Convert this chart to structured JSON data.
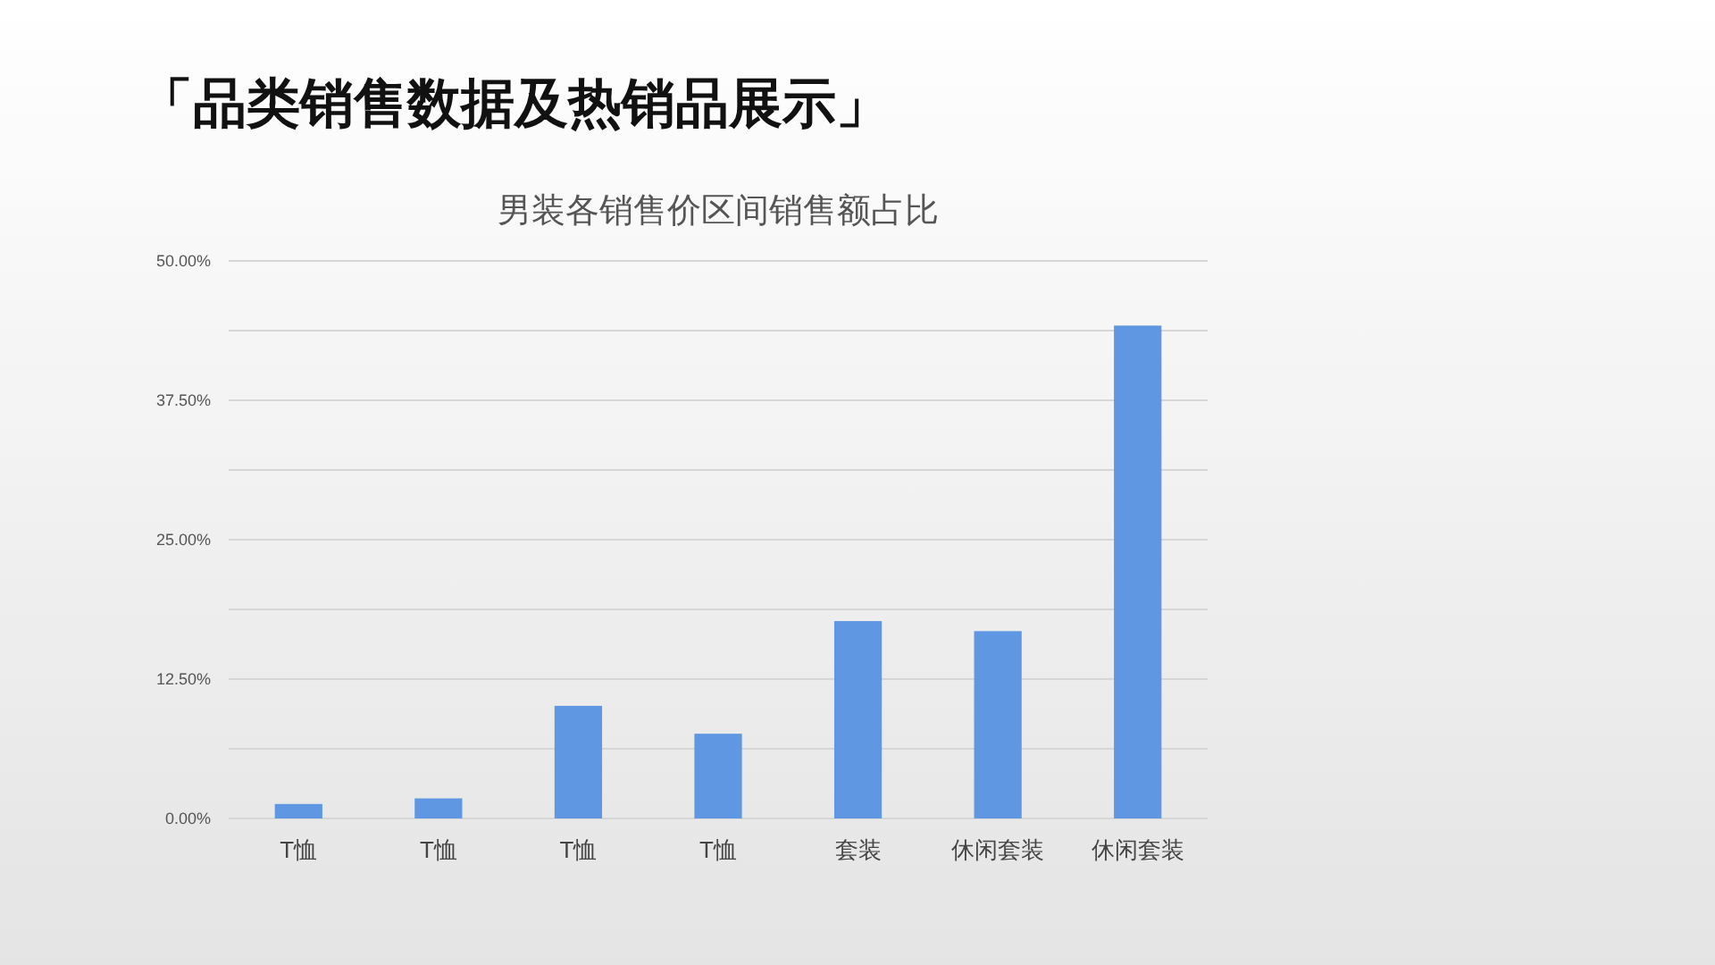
{
  "chart_data": {
    "type": "bar",
    "title": "「品类销售数据及热销品展示」",
    "subtitle": "男装各销售价区间销售额占比",
    "categories": [
      "T恤",
      "T恤",
      "T恤",
      "T恤",
      "套装",
      "休闲套装",
      "休闲套装"
    ],
    "values": [
      1.3,
      1.8,
      10.1,
      7.6,
      17.7,
      16.8,
      44.2
    ],
    "color": "#5f97e2",
    "ylim": [
      0,
      50
    ],
    "yticks": [
      {
        "value": 0,
        "label": "0.00%"
      },
      {
        "value": 6.25,
        "label": null
      },
      {
        "value": 12.5,
        "label": "12.50%"
      },
      {
        "value": 18.75,
        "label": null
      },
      {
        "value": 25,
        "label": "25.00%"
      },
      {
        "value": 31.25,
        "label": null
      },
      {
        "value": 37.5,
        "label": "37.50%"
      },
      {
        "value": 43.75,
        "label": null
      },
      {
        "value": 50,
        "label": "50.00%"
      }
    ],
    "grid": "y"
  }
}
